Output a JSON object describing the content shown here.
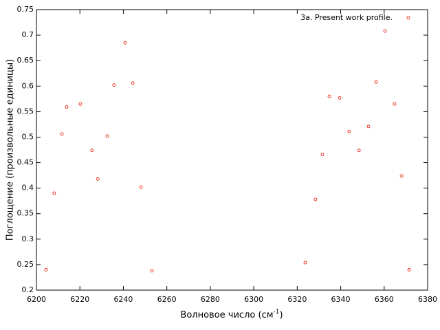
{
  "chart_data": {
    "type": "scatter",
    "xlabel": [
      "Волновое число (см",
      "-1",
      ")"
    ],
    "ylabel": "Поглощение (произвольные единицы)",
    "xlim": [
      6200,
      6380
    ],
    "ylim": [
      0.2,
      0.75
    ],
    "xticks": [
      6200,
      6220,
      6240,
      6260,
      6280,
      6300,
      6320,
      6340,
      6360,
      6380
    ],
    "yticks": [
      0.2,
      0.25,
      0.3,
      0.35,
      0.4,
      0.45,
      0.5,
      0.55,
      0.6,
      0.65,
      0.7,
      0.75
    ],
    "legend": "top-right",
    "series": [
      {
        "name": "3a. Present work profile.",
        "color": "#e8392a",
        "x": [
          6204.4,
          6208.2,
          6211.7,
          6213.9,
          6220.2,
          6225.6,
          6228.2,
          6232.6,
          6235.7,
          6240.8,
          6244.3,
          6248.1,
          6253.1,
          6323.7,
          6328.4,
          6331.6,
          6334.8,
          6339.5,
          6343.9,
          6348.4,
          6352.8,
          6356.3,
          6360.4,
          6364.8,
          6368.0,
          6371.5
        ],
        "values": [
          0.24,
          0.39,
          0.506,
          0.559,
          0.565,
          0.474,
          0.418,
          0.502,
          0.602,
          0.685,
          0.606,
          0.402,
          0.238,
          0.254,
          0.378,
          0.466,
          0.58,
          0.577,
          0.511,
          0.474,
          0.521,
          0.608,
          0.708,
          0.565,
          0.424,
          0.24
        ]
      }
    ]
  }
}
